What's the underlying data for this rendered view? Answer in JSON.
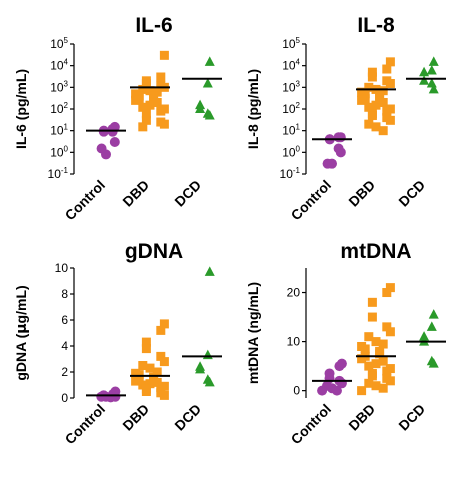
{
  "chart_data": [
    {
      "type": "scatter",
      "title": "IL-6",
      "ylabel": "IL-6 (pg/mL)",
      "yscale": "log",
      "ylim": [
        0.1,
        100000
      ],
      "yticks": [
        {
          "value": 0.1,
          "base": "10",
          "exp": "-1"
        },
        {
          "value": 1,
          "base": "10",
          "exp": "0"
        },
        {
          "value": 10,
          "base": "10",
          "exp": "1"
        },
        {
          "value": 100,
          "base": "10",
          "exp": "2"
        },
        {
          "value": 1000,
          "base": "10",
          "exp": "3"
        },
        {
          "value": 10000,
          "base": "10",
          "exp": "4"
        },
        {
          "value": 100000,
          "base": "10",
          "exp": "5"
        }
      ],
      "categories": [
        "Control",
        "DBD",
        "DCD"
      ],
      "series": [
        {
          "category": "Control",
          "marker": "circle",
          "color": "#9b3ea3",
          "mean": 10,
          "values": [
            15,
            12,
            10,
            9,
            9,
            3,
            1.5,
            0.8
          ]
        },
        {
          "category": "DBD",
          "marker": "square",
          "color": "#f79a1d",
          "mean": 1000,
          "values": [
            30000,
            3000,
            2000,
            1500,
            1200,
            1000,
            800,
            700,
            600,
            500,
            400,
            400,
            300,
            300,
            250,
            200,
            150,
            120,
            100,
            80,
            60,
            30,
            25,
            20,
            15
          ]
        },
        {
          "category": "DCD",
          "marker": "triangle",
          "color": "#2a9a2a",
          "mean": 2500,
          "values": [
            15000,
            1500,
            150,
            100,
            60,
            50
          ]
        }
      ]
    },
    {
      "type": "scatter",
      "title": "IL-8",
      "ylabel": "IL-8 (pg/mL)",
      "yscale": "log",
      "ylim": [
        0.1,
        100000
      ],
      "yticks": [
        {
          "value": 0.1,
          "base": "10",
          "exp": "-1"
        },
        {
          "value": 1,
          "base": "10",
          "exp": "0"
        },
        {
          "value": 10,
          "base": "10",
          "exp": "1"
        },
        {
          "value": 100,
          "base": "10",
          "exp": "2"
        },
        {
          "value": 1000,
          "base": "10",
          "exp": "3"
        },
        {
          "value": 10000,
          "base": "10",
          "exp": "4"
        },
        {
          "value": 100000,
          "base": "10",
          "exp": "5"
        }
      ],
      "categories": [
        "Control",
        "DBD",
        "DCD"
      ],
      "series": [
        {
          "category": "Control",
          "marker": "circle",
          "color": "#9b3ea3",
          "mean": 4,
          "values": [
            5,
            5,
            4,
            4,
            1.5,
            1,
            0.3,
            0.3
          ]
        },
        {
          "category": "DBD",
          "marker": "square",
          "color": "#f79a1d",
          "mean": 800,
          "values": [
            15000,
            7000,
            5000,
            3000,
            2000,
            1500,
            1000,
            800,
            700,
            600,
            500,
            400,
            300,
            300,
            250,
            200,
            150,
            120,
            100,
            80,
            60,
            50,
            40,
            30,
            20,
            15,
            10
          ]
        },
        {
          "category": "DCD",
          "marker": "triangle",
          "color": "#2a9a2a",
          "mean": 2500,
          "values": [
            15000,
            6000,
            5000,
            2000,
            1500,
            800
          ]
        }
      ]
    },
    {
      "type": "scatter",
      "title": "gDNA",
      "ylabel_parts": [
        "gDNA (",
        "μ",
        "g/mL)"
      ],
      "yscale": "linear",
      "ylim": [
        0,
        10
      ],
      "yticks": [
        0,
        2,
        4,
        6,
        8,
        10
      ],
      "categories": [
        "Control",
        "DBD",
        "DCD"
      ],
      "series": [
        {
          "category": "Control",
          "marker": "circle",
          "color": "#9b3ea3",
          "mean": 0.2,
          "values": [
            0.5,
            0.3,
            0.2,
            0.2,
            0.15,
            0.1,
            0.1,
            0.1,
            0.05
          ]
        },
        {
          "category": "DBD",
          "marker": "square",
          "color": "#f79a1d",
          "mean": 1.7,
          "values": [
            5.7,
            5.2,
            4.3,
            3.8,
            3.2,
            2.8,
            2.5,
            2.3,
            2.0,
            1.9,
            1.8,
            1.6,
            1.5,
            1.4,
            1.3,
            1.2,
            1.1,
            1.0,
            0.9,
            0.8,
            0.7,
            0.5,
            0.4,
            0.2
          ]
        },
        {
          "category": "DCD",
          "marker": "triangle",
          "color": "#2a9a2a",
          "mean": 3.2,
          "values": [
            9.7,
            3.3,
            2.4,
            2.2,
            1.4,
            1.2
          ]
        }
      ]
    },
    {
      "type": "scatter",
      "title": "mtDNA",
      "ylabel": "mtDNA (ng/mL)",
      "yscale": "linear",
      "ylim": [
        -1.5,
        25
      ],
      "yticks": [
        0,
        10,
        20
      ],
      "categories": [
        "Control",
        "DBD",
        "DCD"
      ],
      "series": [
        {
          "category": "Control",
          "marker": "circle",
          "color": "#9b3ea3",
          "mean": 2,
          "values": [
            5.5,
            5,
            3.5,
            2.5,
            2,
            1.5,
            1,
            0.5,
            0,
            0
          ]
        },
        {
          "category": "DBD",
          "marker": "square",
          "color": "#f79a1d",
          "mean": 7,
          "values": [
            21,
            20,
            18,
            15,
            13,
            12,
            11,
            10,
            9.5,
            9,
            8.5,
            8,
            7.5,
            7,
            6.5,
            6,
            5.5,
            5,
            4.5,
            4,
            3.5,
            3,
            2.5,
            2,
            1.5,
            1,
            0.5,
            0
          ]
        },
        {
          "category": "DCD",
          "marker": "triangle",
          "color": "#2a9a2a",
          "mean": 10,
          "values": [
            15.5,
            13,
            11,
            10,
            6,
            5.5
          ]
        }
      ]
    }
  ]
}
